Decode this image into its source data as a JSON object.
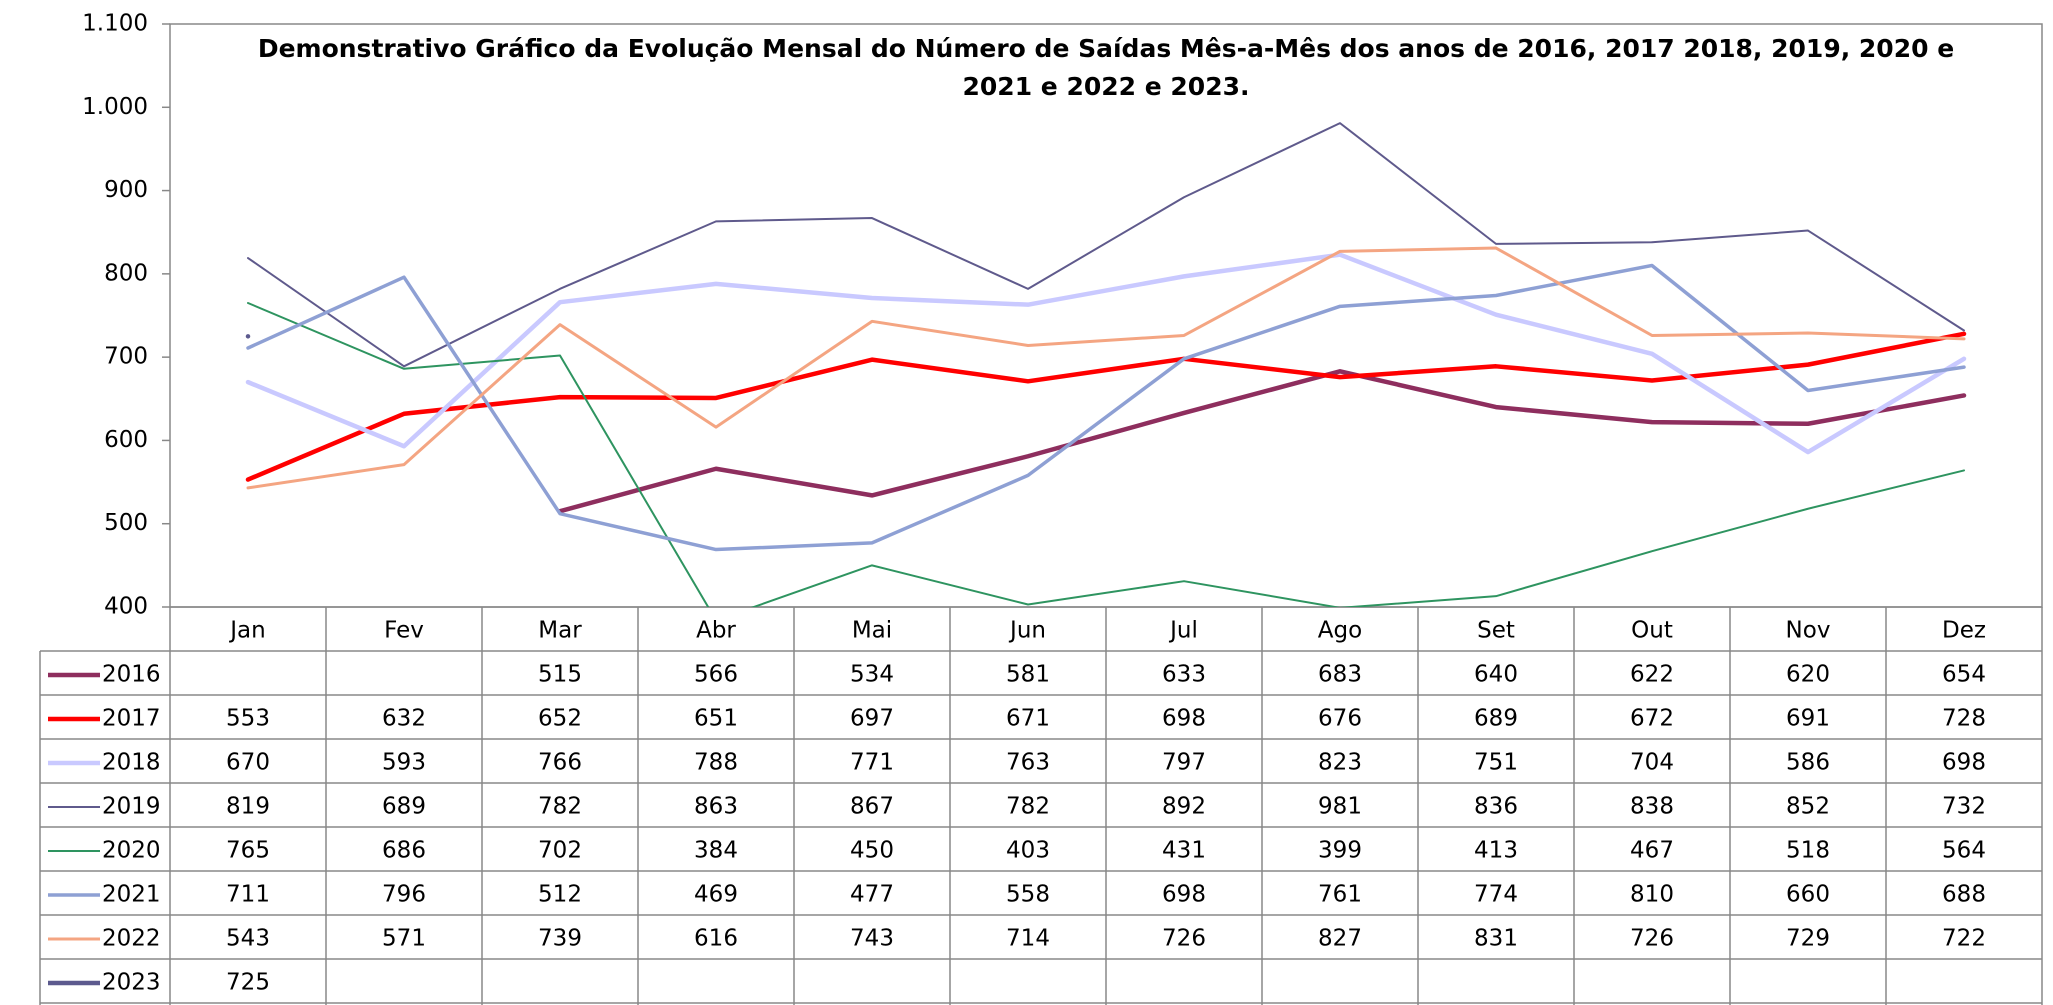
{
  "chart_data": {
    "type": "line",
    "title": [
      "Demonstrativo Gráfico da Evolução Mensal do Número de Saídas Mês-a-Mês dos anos de  2016, 2017 2018, 2019, 2020 e",
      "2021 e 2022 e 2023."
    ],
    "categories": [
      "Jan",
      "Fev",
      "Mar",
      "Abr",
      "Mai",
      "Jun",
      "Jul",
      "Ago",
      "Set",
      "Out",
      "Nov",
      "Dez"
    ],
    "ylim": [
      400,
      1100
    ],
    "yticks": [
      400,
      500,
      600,
      700,
      800,
      900,
      {
        "value": 1000,
        "label": "1.000"
      },
      {
        "value": 1100,
        "label": "1.100"
      }
    ],
    "series": [
      {
        "name": "2016",
        "color": "#8e2e5e",
        "values": [
          null,
          null,
          515,
          566,
          534,
          581,
          633,
          683,
          640,
          622,
          620,
          654
        ]
      },
      {
        "name": "2017",
        "color": "#ff0000",
        "values": [
          553,
          632,
          652,
          651,
          697,
          671,
          698,
          676,
          689,
          672,
          691,
          728
        ]
      },
      {
        "name": "2018",
        "color": "#c9c9ff",
        "values": [
          670,
          593,
          766,
          788,
          771,
          763,
          797,
          823,
          751,
          704,
          586,
          698
        ]
      },
      {
        "name": "2019",
        "color": "#5f5a8c",
        "values": [
          819,
          689,
          782,
          863,
          867,
          782,
          892,
          981,
          836,
          838,
          852,
          732
        ]
      },
      {
        "name": "2020",
        "color": "#2e9460",
        "values": [
          765,
          686,
          702,
          384,
          450,
          403,
          431,
          399,
          413,
          467,
          518,
          564
        ]
      },
      {
        "name": "2021",
        "color": "#8ea0d4",
        "values": [
          711,
          796,
          512,
          469,
          477,
          558,
          698,
          761,
          774,
          810,
          660,
          688
        ]
      },
      {
        "name": "2022",
        "color": "#f4a582",
        "values": [
          543,
          571,
          739,
          616,
          743,
          714,
          726,
          827,
          831,
          726,
          729,
          722
        ]
      },
      {
        "name": "2023",
        "color": "#5c5a8e",
        "values": [
          725,
          null,
          null,
          null,
          null,
          null,
          null,
          null,
          null,
          null,
          null,
          null
        ]
      }
    ]
  }
}
